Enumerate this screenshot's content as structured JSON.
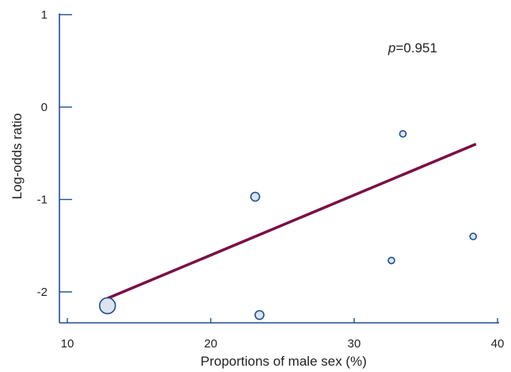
{
  "chart_data": {
    "type": "scatter",
    "title": "",
    "xlabel": "Proportions of male sex (%)",
    "ylabel": "Log-odds ratio",
    "xlim": [
      10,
      40
    ],
    "ylim": [
      -2.35,
      1.05
    ],
    "x_ticks": [
      "10",
      "20",
      "30",
      "40"
    ],
    "y_ticks": [
      "1",
      "0",
      "-1",
      "-2"
    ],
    "annotation": {
      "prefix": "p",
      "value": "=0.951"
    },
    "points": [
      {
        "x": 12.8,
        "y": -2.15,
        "weight": 3.0
      },
      {
        "x": 23.1,
        "y": -0.97,
        "weight": 1.5
      },
      {
        "x": 23.4,
        "y": -2.25,
        "weight": 1.5
      },
      {
        "x": 32.6,
        "y": -1.66,
        "weight": 1.0
      },
      {
        "x": 33.4,
        "y": -0.29,
        "weight": 1.0
      },
      {
        "x": 38.3,
        "y": -1.4,
        "weight": 1.0
      }
    ],
    "fit_line": {
      "x": [
        12.8,
        38.5
      ],
      "y": [
        -2.07,
        -0.4
      ]
    },
    "colors": {
      "marker_fill": "#dce3f1",
      "marker_stroke": "#1e4f8f",
      "fit_line": "#7a1046",
      "axis": "#1e4f8f"
    },
    "grid": false,
    "legend": "none"
  }
}
